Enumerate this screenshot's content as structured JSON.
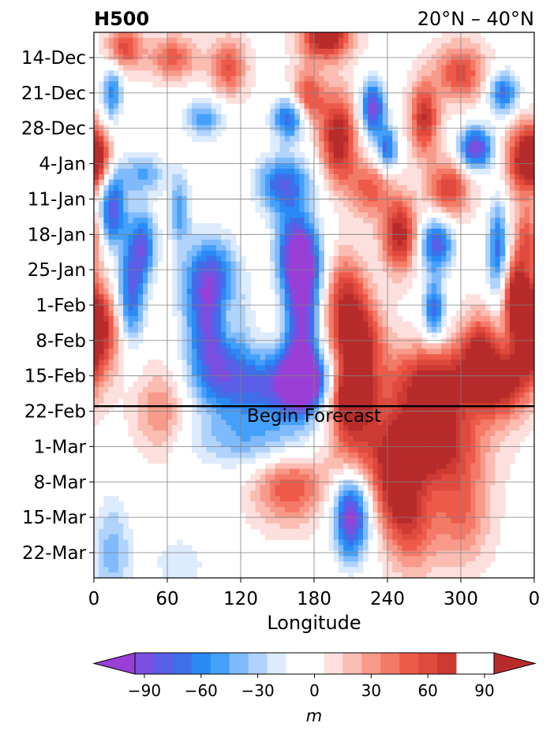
{
  "chart_data": {
    "type": "heatmap",
    "title_left": "H500",
    "title_right": "20°N – 40°N",
    "xlabel": "Longitude",
    "ylabel": "",
    "x_ticks": [
      "0",
      "60",
      "120",
      "180",
      "240",
      "300",
      "0"
    ],
    "x_tick_values": [
      0,
      60,
      120,
      180,
      240,
      300,
      360
    ],
    "xlim": [
      0,
      360
    ],
    "y_ticks": [
      "14-Dec",
      "21-Dec",
      "28-Dec",
      "4-Jan",
      "11-Jan",
      "18-Jan",
      "25-Jan",
      "1-Feb",
      "8-Feb",
      "15-Feb",
      "22-Feb",
      "1-Mar",
      "8-Mar",
      "15-Mar",
      "22-Mar"
    ],
    "y_tick_days": [
      0,
      7,
      14,
      21,
      28,
      35,
      42,
      49,
      56,
      63,
      70,
      77,
      84,
      91,
      98
    ],
    "ylim_days": [
      -5,
      103
    ],
    "ylim_dates": [
      "9-Dec",
      "27-Mar"
    ],
    "y_inverted": true,
    "grid": true,
    "annotation": {
      "text": "Begin Forecast",
      "date": "20-Feb"
    },
    "colorbar": {
      "label": "m",
      "ticks": [
        "−90",
        "−60",
        "−30",
        "0",
        "30",
        "60",
        "90"
      ],
      "tick_values": [
        -90,
        -60,
        -30,
        0,
        30,
        60,
        90
      ],
      "levels": [
        -105,
        -95,
        -85,
        -75,
        -65,
        -55,
        -45,
        -35,
        -25,
        -15,
        -5,
        5,
        15,
        25,
        35,
        45,
        55,
        65,
        75,
        85,
        95,
        105
      ],
      "colors": [
        "#9a3fd6",
        "#7a4fe0",
        "#5a5ee8",
        "#3f6fe8",
        "#2a8af5",
        "#45a0fb",
        "#7fbafc",
        "#b0d3fc",
        "#dcebfd",
        "#ffffff",
        "#ffffff",
        "#fde0dd",
        "#fbbcb2",
        "#f89a8a",
        "#f47a68",
        "#ee5a4a",
        "#e04a3e",
        "#cc3a33",
        "#b82b2b"
      ],
      "extend": "both",
      "under_color": "#9a3fd6",
      "over_color": "#b82b2b"
    },
    "features": [
      {
        "lon": 190,
        "day": -4,
        "value": 95,
        "lon_w": 14,
        "day_w": 3
      },
      {
        "lon": 25,
        "day": -2,
        "value": 60,
        "lon_w": 10,
        "day_w": 3
      },
      {
        "lon": 65,
        "day": 0,
        "value": 50,
        "lon_w": 14,
        "day_w": 3
      },
      {
        "lon": 110,
        "day": 2,
        "value": 55,
        "lon_w": 10,
        "day_w": 4
      },
      {
        "lon": 300,
        "day": 3,
        "value": 60,
        "lon_w": 14,
        "day_w": 4
      },
      {
        "lon": 15,
        "day": 7,
        "value": -60,
        "lon_w": 6,
        "day_w": 4
      },
      {
        "lon": 335,
        "day": 7,
        "value": -70,
        "lon_w": 9,
        "day_w": 3
      },
      {
        "lon": 90,
        "day": 12,
        "value": -50,
        "lon_w": 12,
        "day_w": 3
      },
      {
        "lon": 228,
        "day": 10,
        "value": -95,
        "lon_w": 7,
        "day_w": 4
      },
      {
        "lon": 240,
        "day": 18,
        "value": -70,
        "lon_w": 6,
        "day_w": 3
      },
      {
        "lon": 270,
        "day": 12,
        "value": 75,
        "lon_w": 8,
        "day_w": 5
      },
      {
        "lon": 200,
        "day": 16,
        "value": 90,
        "lon_w": 10,
        "day_w": 6
      },
      {
        "lon": 175,
        "day": 8,
        "value": 60,
        "lon_w": 10,
        "day_w": 4
      },
      {
        "lon": 160,
        "day": 12,
        "value": -80,
        "lon_w": 10,
        "day_w": 3
      },
      {
        "lon": 312,
        "day": 18,
        "value": -95,
        "lon_w": 10,
        "day_w": 3
      },
      {
        "lon": 350,
        "day": 20,
        "value": 70,
        "lon_w": 10,
        "day_w": 5
      },
      {
        "lon": 2,
        "day": 20,
        "value": 80,
        "lon_w": 8,
        "day_w": 4
      },
      {
        "lon": 40,
        "day": 23,
        "value": -45,
        "lon_w": 14,
        "day_w": 3
      },
      {
        "lon": 155,
        "day": 25,
        "value": -75,
        "lon_w": 16,
        "day_w": 4
      },
      {
        "lon": 225,
        "day": 26,
        "value": 50,
        "lon_w": 12,
        "day_w": 4
      },
      {
        "lon": 290,
        "day": 26,
        "value": 65,
        "lon_w": 12,
        "day_w": 4
      },
      {
        "lon": 15,
        "day": 30,
        "value": -85,
        "lon_w": 8,
        "day_w": 5
      },
      {
        "lon": 70,
        "day": 30,
        "value": -50,
        "lon_w": 6,
        "day_w": 5
      },
      {
        "lon": 40,
        "day": 37,
        "value": -70,
        "lon_w": 8,
        "day_w": 5
      },
      {
        "lon": 250,
        "day": 35,
        "value": 85,
        "lon_w": 10,
        "day_w": 5
      },
      {
        "lon": 280,
        "day": 37,
        "value": -80,
        "lon_w": 10,
        "day_w": 4
      },
      {
        "lon": 330,
        "day": 38,
        "value": -70,
        "lon_w": 6,
        "day_w": 7
      },
      {
        "lon": 355,
        "day": 36,
        "value": 55,
        "lon_w": 8,
        "day_w": 5
      },
      {
        "lon": 165,
        "day": 36,
        "value": -60,
        "lon_w": 12,
        "day_w": 5
      },
      {
        "lon": 170,
        "day": 42,
        "value": -95,
        "lon_w": 12,
        "day_w": 5
      },
      {
        "lon": 95,
        "day": 44,
        "value": -80,
        "lon_w": 16,
        "day_w": 6
      },
      {
        "lon": 30,
        "day": 47,
        "value": -75,
        "lon_w": 8,
        "day_w": 7
      },
      {
        "lon": 205,
        "day": 47,
        "value": 60,
        "lon_w": 12,
        "day_w": 6
      },
      {
        "lon": 345,
        "day": 47,
        "value": 85,
        "lon_w": 8,
        "day_w": 5
      },
      {
        "lon": 278,
        "day": 50,
        "value": -75,
        "lon_w": 6,
        "day_w": 4
      },
      {
        "lon": 108,
        "day": 52,
        "value": 50,
        "lon_w": 8,
        "day_w": 5
      },
      {
        "lon": 5,
        "day": 54,
        "value": 70,
        "lon_w": 12,
        "day_w": 6
      },
      {
        "lon": 100,
        "day": 56,
        "value": -85,
        "lon_w": 16,
        "day_w": 7
      },
      {
        "lon": 170,
        "day": 53,
        "value": -85,
        "lon_w": 10,
        "day_w": 6
      },
      {
        "lon": 215,
        "day": 57,
        "value": 95,
        "lon_w": 14,
        "day_w": 6
      },
      {
        "lon": 355,
        "day": 54,
        "value": 85,
        "lon_w": 8,
        "day_w": 5
      },
      {
        "lon": 315,
        "day": 58,
        "value": 70,
        "lon_w": 10,
        "day_w": 5
      },
      {
        "lon": 170,
        "day": 64,
        "value": -100,
        "lon_w": 12,
        "day_w": 4
      },
      {
        "lon": 145,
        "day": 65,
        "value": -75,
        "lon_w": 40,
        "day_w": 5
      },
      {
        "lon": 280,
        "day": 64,
        "value": 80,
        "lon_w": 30,
        "day_w": 5
      },
      {
        "lon": 335,
        "day": 64,
        "value": 75,
        "lon_w": 16,
        "day_w": 5
      },
      {
        "lon": 210,
        "day": 67,
        "value": 90,
        "lon_w": 12,
        "day_w": 4
      },
      {
        "lon": 270,
        "day": 76,
        "value": 95,
        "lon_w": 30,
        "day_w": 6
      },
      {
        "lon": 210,
        "day": 75,
        "value": 50,
        "lon_w": 15,
        "day_w": 6
      },
      {
        "lon": 55,
        "day": 70,
        "value": 40,
        "lon_w": 15,
        "day_w": 6
      },
      {
        "lon": 130,
        "day": 76,
        "value": -40,
        "lon_w": 40,
        "day_w": 4
      },
      {
        "lon": 160,
        "day": 85,
        "value": 55,
        "lon_w": 20,
        "day_w": 5
      },
      {
        "lon": 245,
        "day": 85,
        "value": 60,
        "lon_w": 12,
        "day_w": 6
      },
      {
        "lon": 210,
        "day": 91,
        "value": -100,
        "lon_w": 10,
        "day_w": 6
      },
      {
        "lon": 260,
        "day": 92,
        "value": 55,
        "lon_w": 14,
        "day_w": 7
      },
      {
        "lon": 300,
        "day": 90,
        "value": 45,
        "lon_w": 16,
        "day_w": 7
      },
      {
        "lon": 15,
        "day": 98,
        "value": -40,
        "lon_w": 12,
        "day_w": 8
      },
      {
        "lon": 70,
        "day": 100,
        "value": -25,
        "lon_w": 16,
        "day_w": 4
      }
    ]
  }
}
